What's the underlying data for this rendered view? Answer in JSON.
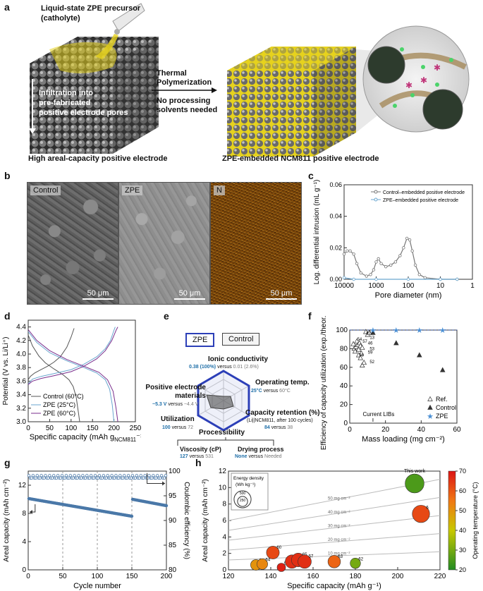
{
  "panels": {
    "a": "a",
    "b": "b",
    "c": "c",
    "d": "d",
    "e": "e",
    "f": "f",
    "g": "g",
    "h": "h"
  },
  "panel_a": {
    "precursor_line1": "Liquid-state ZPE precursor",
    "precursor_line2": "(catholyte)",
    "infiltration_line1": "Infiltration into",
    "infiltration_line2": "pre-fabricated",
    "infiltration_line3": "positive electrode pores",
    "thermal_line1": "Thermal",
    "thermal_line2": "Polymerization",
    "nosolvent_line1": "No processing",
    "nosolvent_line2": "solvents needed",
    "left_caption": "High areal-capacity positive electrode",
    "right_caption": "ZPE-embedded NCM811 positive electrode"
  },
  "panel_b": {
    "images": [
      {
        "label": "Control",
        "scale": "50 μm"
      },
      {
        "label": "ZPE",
        "scale": "50 μm"
      },
      {
        "label": "N",
        "scale": "50 μm"
      }
    ]
  },
  "panel_c": {
    "chart_data": {
      "type": "line",
      "xlabel": "Pore diameter (nm)",
      "ylabel": "Log. differential intrusion (mL g⁻¹)",
      "x_scale": "log",
      "xlim": [
        10000,
        1
      ],
      "ylim": [
        0,
        0.06
      ],
      "x_ticks": [
        "10000",
        "1000",
        "100",
        "10",
        "1"
      ],
      "y_ticks": [
        "0.00",
        "0.02",
        "0.04",
        "0.06"
      ],
      "legend_position": "top-right",
      "series": [
        {
          "name": "Control–embedded positive electrode",
          "color": "#777777",
          "points": [
            [
              10000,
              0.016
            ],
            [
              8000,
              0.018
            ],
            [
              6500,
              0.018
            ],
            [
              5000,
              0.016
            ],
            [
              4000,
              0.01
            ],
            [
              3000,
              0.004
            ],
            [
              2000,
              0.002
            ],
            [
              1500,
              0.003
            ],
            [
              1200,
              0.006
            ],
            [
              1000,
              0.011
            ],
            [
              850,
              0.013
            ],
            [
              700,
              0.01
            ],
            [
              500,
              0.008
            ],
            [
              350,
              0.009
            ],
            [
              250,
              0.011
            ],
            [
              180,
              0.015
            ],
            [
              140,
              0.02
            ],
            [
              110,
              0.026
            ],
            [
              90,
              0.025
            ],
            [
              75,
              0.018
            ],
            [
              60,
              0.009
            ],
            [
              45,
              0.003
            ],
            [
              30,
              0.001
            ],
            [
              10,
              0.0
            ],
            [
              3,
              0.0
            ]
          ]
        },
        {
          "name": "ZPE–embedded positive electrode",
          "color": "#6aa6cf",
          "points": [
            [
              10000,
              0.001
            ],
            [
              5000,
              0.0
            ],
            [
              1000,
              0.0
            ],
            [
              100,
              0.0
            ],
            [
              10,
              0.0
            ],
            [
              3,
              0.0
            ]
          ]
        }
      ]
    }
  },
  "panel_d": {
    "chart_data": {
      "type": "line",
      "xlabel": "Specific capacity (mAh g",
      "xlabel_sub": "NCM811",
      "xlabel_end": "⁻¹)",
      "ylabel": "Potential (V vs. Li/Li⁺)",
      "xlim": [
        0,
        250
      ],
      "ylim": [
        3.0,
        4.5
      ],
      "x_ticks": [
        "0",
        "50",
        "100",
        "150",
        "200",
        "250"
      ],
      "y_ticks": [
        "3.0",
        "3.2",
        "3.4",
        "3.6",
        "3.8",
        "4.0",
        "4.2",
        "4.4"
      ],
      "legend_position": "bottom-left",
      "series": [
        {
          "name": "Control (60°C)",
          "color": "#555555",
          "charge": [
            [
              0,
              3.62
            ],
            [
              5,
              3.67
            ],
            [
              15,
              3.72
            ],
            [
              30,
              3.77
            ],
            [
              45,
              3.82
            ],
            [
              60,
              3.88
            ],
            [
              75,
              3.96
            ],
            [
              90,
              4.1
            ],
            [
              100,
              4.25
            ],
            [
              107,
              4.38
            ]
          ],
          "discharge": [
            [
              0,
              4.28
            ],
            [
              10,
              4.12
            ],
            [
              25,
              3.97
            ],
            [
              40,
              3.87
            ],
            [
              60,
              3.78
            ],
            [
              80,
              3.7
            ],
            [
              95,
              3.62
            ],
            [
              105,
              3.52
            ],
            [
              112,
              3.36
            ],
            [
              118,
              3.1
            ],
            [
              120,
              3.0
            ]
          ]
        },
        {
          "name": "ZPE (25°C)",
          "color": "#6aa6cf",
          "charge": [
            [
              0,
              3.56
            ],
            [
              10,
              3.63
            ],
            [
              30,
              3.67
            ],
            [
              60,
              3.71
            ],
            [
              100,
              3.77
            ],
            [
              130,
              3.85
            ],
            [
              160,
              3.96
            ],
            [
              180,
              4.08
            ],
            [
              192,
              4.2
            ],
            [
              200,
              4.35
            ],
            [
              203,
              4.4
            ]
          ],
          "discharge": [
            [
              0,
              4.33
            ],
            [
              20,
              4.17
            ],
            [
              50,
              4.02
            ],
            [
              90,
              3.9
            ],
            [
              130,
              3.8
            ],
            [
              160,
              3.72
            ],
            [
              180,
              3.62
            ],
            [
              190,
              3.48
            ],
            [
              196,
              3.25
            ],
            [
              200,
              3.0
            ]
          ]
        },
        {
          "name": "ZPE (60°C)",
          "color": "#7a2e8c",
          "charge": [
            [
              0,
              3.55
            ],
            [
              10,
              3.6
            ],
            [
              30,
              3.64
            ],
            [
              60,
              3.68
            ],
            [
              100,
              3.74
            ],
            [
              130,
              3.82
            ],
            [
              160,
              3.93
            ],
            [
              180,
              4.05
            ],
            [
              195,
              4.2
            ],
            [
              205,
              4.35
            ],
            [
              209,
              4.4
            ]
          ],
          "discharge": [
            [
              0,
              4.36
            ],
            [
              20,
              4.2
            ],
            [
              50,
              4.05
            ],
            [
              90,
              3.92
            ],
            [
              130,
              3.82
            ],
            [
              165,
              3.73
            ],
            [
              185,
              3.62
            ],
            [
              198,
              3.45
            ],
            [
              205,
              3.2
            ],
            [
              209,
              3.0
            ]
          ]
        }
      ]
    }
  },
  "panel_e": {
    "tab_zpe": "ZPE",
    "tab_control": "Control",
    "ionic_title": "Ionic conductivity",
    "ionic_zpe": "0.38 (100%)",
    "ionic_versus": "versus",
    "ionic_ctrl": "0.01 (2.6%)",
    "temp_title": "Operating temp.",
    "temp_zpe": "25°C",
    "temp_versus": "versus",
    "temp_ctrl": "60°C",
    "pos_title_1": "Positive electrode",
    "pos_title_2": "materials",
    "pos_zpe": "~5.3 V",
    "pos_versus": "versus",
    "pos_ctrl": "~4.4 V",
    "ret_title": "Capacity retention (%)",
    "ret_sub": "(Li||NCM811, after 100 cycles)",
    "ret_zpe": "84",
    "ret_versus": "versus",
    "ret_ctrl": "38",
    "util_title": "Utilization",
    "util_zpe": "100",
    "util_versus": "versus",
    "util_ctrl": "72",
    "proc_title": "Processibility",
    "visc_title": "Viscosity (cP)",
    "visc_zpe": "127",
    "visc_versus": "versus",
    "visc_ctrl": "531",
    "dry_title": "Drying process",
    "dry_zpe": "None",
    "dry_versus": "versus",
    "dry_ctrl": "Needed",
    "colors": {
      "zpe": "#2c3fb8",
      "control": "#777777",
      "value": "#1f6fa8"
    }
  },
  "panel_f": {
    "chart_data": {
      "type": "scatter",
      "xlabel": "Mass loading (mg cm⁻²)",
      "ylabel": "Efficiency of capacity utilization (exp./theor., %)",
      "xlim": [
        0,
        60
      ],
      "ylim": [
        0,
        100
      ],
      "x_ticks": [
        "0",
        "20",
        "40",
        "60"
      ],
      "y_ticks": [
        "0",
        "20",
        "40",
        "60",
        "80",
        "100"
      ],
      "annotation": "Current LIBs",
      "reference_line": 100,
      "legend_position": "bottom-right",
      "series": [
        {
          "name": "Ref.",
          "marker": "open-triangle",
          "points": [
            [
              2,
              85
            ],
            [
              2.5,
              80
            ],
            [
              3,
              77
            ],
            [
              3.5,
              82
            ],
            [
              4,
              88
            ],
            [
              4.5,
              84
            ],
            [
              5,
              79
            ],
            [
              5.5,
              86
            ],
            [
              6,
              83
            ],
            [
              6.5,
              75
            ],
            [
              7,
              81
            ],
            [
              5,
              73
            ],
            [
              6,
              70
            ],
            [
              7,
              62
            ],
            [
              8,
              65
            ],
            [
              9,
              98
            ],
            [
              10,
              95
            ],
            [
              11,
              97
            ]
          ],
          "labels": [
            {
              "x": 3,
              "y": 90,
              "t": "54"
            },
            {
              "x": 6,
              "y": 88,
              "t": "57"
            },
            {
              "x": 9,
              "y": 86,
              "t": "46"
            },
            {
              "x": 10,
              "y": 92,
              "t": "13"
            },
            {
              "x": 10,
              "y": 80,
              "t": "53"
            },
            {
              "x": 9,
              "y": 76,
              "t": "59"
            },
            {
              "x": 10,
              "y": 66,
              "t": "52"
            },
            {
              "x": 4,
              "y": 73,
              "t": "58"
            },
            {
              "x": 8,
              "y": 97,
              "t": "47"
            }
          ]
        },
        {
          "name": "Control",
          "marker": "filled-triangle",
          "points": [
            [
              13,
              97
            ],
            [
              26,
              86
            ],
            [
              39,
              73
            ],
            [
              52,
              57
            ]
          ]
        },
        {
          "name": "ZPE",
          "marker": "star",
          "points": [
            [
              13,
              100
            ],
            [
              26,
              100
            ],
            [
              39,
              100
            ],
            [
              52,
              100
            ]
          ]
        }
      ]
    }
  },
  "panel_g": {
    "chart_data": {
      "type": "scatter",
      "xlabel": "Cycle number",
      "ylabel_left": "Areal capacity (mAh cm⁻²)",
      "ylabel_right": "Coulombic efficiency (%)",
      "xlim": [
        0,
        200
      ],
      "ylim_left": [
        0,
        14
      ],
      "ylim_right": [
        80,
        100
      ],
      "x_ticks": [
        "0",
        "50",
        "100",
        "150",
        "200"
      ],
      "y_ticks_left": [
        "0",
        "4",
        "8",
        "12"
      ],
      "y_ticks_right": [
        "80",
        "85",
        "90",
        "95",
        "100"
      ],
      "capacity_segments": [
        {
          "x0": 1,
          "x1": 150,
          "y0": 10.1,
          "y1": 7.6
        },
        {
          "x0": 151,
          "x1": 200,
          "y0": 10.0,
          "y1": 9.1
        }
      ],
      "coulombic_efficiency": 98.8,
      "dashed_lines_x": [
        50,
        100,
        150
      ]
    }
  },
  "panel_h": {
    "chart_data": {
      "type": "scatter",
      "xlabel": "Specific capacity (mAh g⁻¹)",
      "ylabel": "Areal capacity (mAh cm⁻²)",
      "xlim": [
        120,
        220
      ],
      "ylim": [
        0,
        12
      ],
      "x_ticks": [
        "120",
        "140",
        "160",
        "180",
        "200",
        "220"
      ],
      "y_ticks": [
        "0",
        "2",
        "4",
        "6",
        "8",
        "10",
        "12"
      ],
      "size_legend_title_1": "Energy density",
      "size_legend_title_2": "(Wh kg⁻¹)",
      "size_legend_values": [
        "500",
        "250"
      ],
      "colorbar_label": "Operating temperature (°C)",
      "colorbar_ticks": [
        "20",
        "30",
        "40",
        "50",
        "60",
        "70"
      ],
      "this_work_label": "This work",
      "iso_lines": [
        {
          "label": "50 mg cm⁻²",
          "mass": 50
        },
        {
          "label": "40 mg cm⁻²",
          "mass": 40
        },
        {
          "label": "30 mg cm⁻²",
          "mass": 30
        },
        {
          "label": "20 mg cm⁻²",
          "mass": 20
        },
        {
          "label": "10 mg cm⁻²",
          "mass": 10
        }
      ],
      "points": [
        {
          "x": 208,
          "y": 10.5,
          "temp": 25,
          "size": 500,
          "label": ""
        },
        {
          "x": 211,
          "y": 6.8,
          "temp": 62,
          "size": 420,
          "label": "6"
        },
        {
          "x": 141,
          "y": 2.1,
          "temp": 62,
          "size": 230,
          "label": "60"
        },
        {
          "x": 133,
          "y": 0.6,
          "temp": 50,
          "size": 160,
          "label": "66"
        },
        {
          "x": 136,
          "y": 0.7,
          "temp": 52,
          "size": 160,
          "label": "64"
        },
        {
          "x": 145,
          "y": 0.3,
          "temp": 68,
          "size": 100,
          "label": "52"
        },
        {
          "x": 150,
          "y": 1.0,
          "temp": 66,
          "size": 250,
          "label": "61"
        },
        {
          "x": 153,
          "y": 1.2,
          "temp": 66,
          "size": 260,
          "label": "65"
        },
        {
          "x": 156,
          "y": 1.0,
          "temp": 66,
          "size": 250,
          "label": "57"
        },
        {
          "x": 170,
          "y": 1.0,
          "temp": 58,
          "size": 220,
          "label": "63"
        },
        {
          "x": 180,
          "y": 0.8,
          "temp": 30,
          "size": 150,
          "label": "62"
        }
      ]
    }
  }
}
